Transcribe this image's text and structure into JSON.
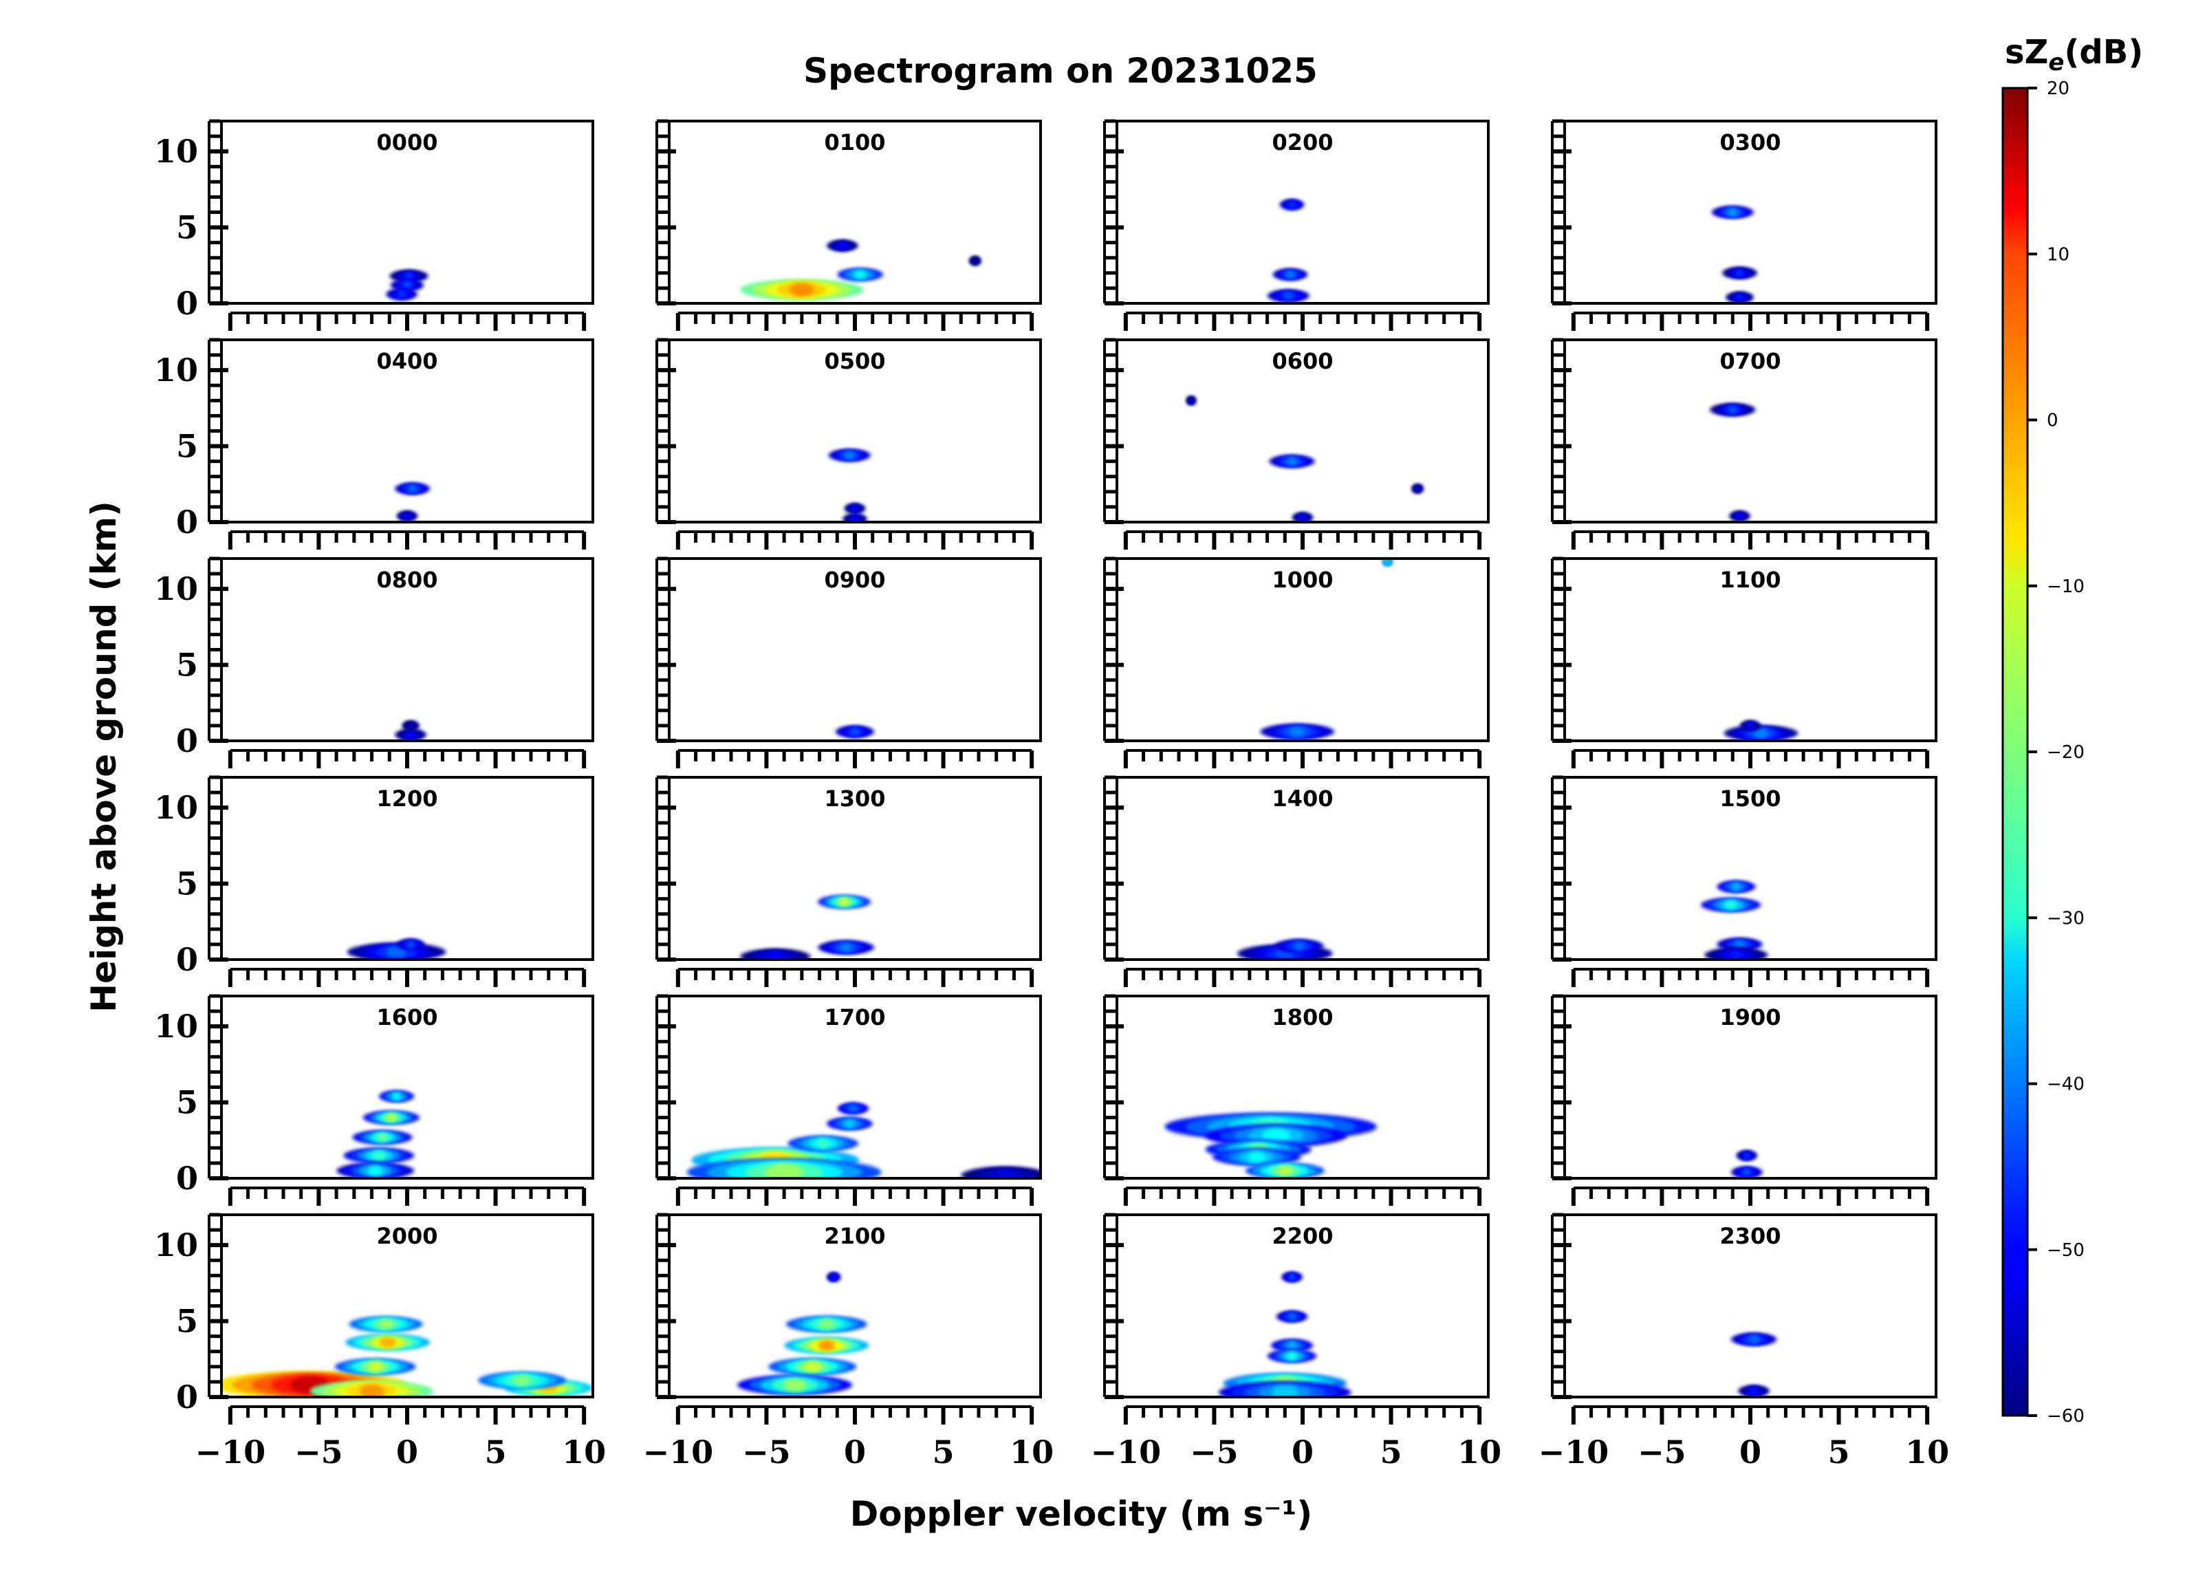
{
  "chart_data": {
    "type": "heatmap",
    "title": "Spectrogram on 20231025",
    "xlabel": "Doppler velocity (m s⁻¹)",
    "ylabel": "Height above ground (km)",
    "xlim": [
      -10.5,
      10.5
    ],
    "ylim": [
      0,
      12
    ],
    "xticks": [
      -10,
      -5,
      0,
      5,
      10
    ],
    "xtick_labels": [
      "−10",
      "−5",
      "0",
      "5",
      "10"
    ],
    "yticks": [
      0,
      5,
      10
    ],
    "ytick_labels": [
      "0",
      "5",
      "10"
    ],
    "grid": false,
    "colorbar": {
      "title": "sZe(dB)",
      "range": [
        -60,
        20
      ],
      "ticks": [
        20,
        10,
        0,
        -10,
        -20,
        -30,
        -40,
        -50,
        -60
      ],
      "tick_labels": [
        "20",
        "10",
        "0",
        "−10",
        "−20",
        "−30",
        "−40",
        "−50",
        "−60"
      ],
      "colormap": "jet"
    },
    "panels": [
      {
        "label": "0000",
        "echoes": [
          [
            0.1,
            1.8,
            2.2,
            -60,
            -46
          ],
          [
            0.0,
            1.2,
            1.9,
            -55,
            -44
          ],
          [
            -0.3,
            0.6,
            1.8,
            -55,
            -46
          ]
        ]
      },
      {
        "label": "0100",
        "echoes": [
          [
            -3,
            0.9,
            7,
            -22,
            -1
          ],
          [
            0.3,
            1.9,
            2.6,
            -48,
            -30
          ],
          [
            -0.7,
            3.8,
            1.8,
            -60,
            -50
          ],
          [
            6.8,
            2.8,
            0.7,
            -60,
            -58
          ]
        ]
      },
      {
        "label": "0200",
        "echoes": [
          [
            -0.6,
            6.5,
            1.4,
            -55,
            -46
          ],
          [
            -0.7,
            1.9,
            2.0,
            -55,
            -40
          ],
          [
            -0.8,
            0.5,
            2.4,
            -55,
            -44
          ]
        ]
      },
      {
        "label": "0300",
        "echoes": [
          [
            -1,
            6.0,
            2.4,
            -55,
            -38
          ],
          [
            -0.6,
            2.0,
            2.0,
            -60,
            -46
          ],
          [
            -0.6,
            0.4,
            1.6,
            -60,
            -48
          ]
        ]
      },
      {
        "label": "0400",
        "echoes": [
          [
            0.3,
            2.2,
            2.0,
            -55,
            -42
          ],
          [
            0,
            0.4,
            1.2,
            -60,
            -50
          ]
        ]
      },
      {
        "label": "0500",
        "echoes": [
          [
            -0.3,
            4.4,
            2.4,
            -55,
            -40
          ],
          [
            0,
            0.9,
            1.2,
            -60,
            -50
          ],
          [
            0,
            0.2,
            1.4,
            -60,
            -50
          ]
        ]
      },
      {
        "label": "0600",
        "echoes": [
          [
            -0.6,
            4.0,
            2.6,
            -55,
            -40
          ],
          [
            -6.3,
            8.0,
            0.6,
            -60,
            -55
          ],
          [
            6.5,
            2.2,
            0.7,
            -60,
            -55
          ],
          [
            0,
            0.3,
            1.2,
            -60,
            -50
          ]
        ]
      },
      {
        "label": "0700",
        "echoes": [
          [
            -1,
            7.4,
            2.6,
            -60,
            -44
          ],
          [
            -0.6,
            0.4,
            1.2,
            -60,
            -50
          ]
        ]
      },
      {
        "label": "0800",
        "echoes": [
          [
            0.2,
            0.4,
            1.8,
            -60,
            -50
          ],
          [
            0.2,
            1.0,
            1.0,
            -60,
            -56
          ]
        ]
      },
      {
        "label": "0900",
        "echoes": [
          [
            0,
            0.6,
            2.2,
            -55,
            -44
          ]
        ]
      },
      {
        "label": "1000",
        "echoes": [
          [
            -0.3,
            0.6,
            4.2,
            -55,
            -40
          ],
          [
            4.8,
            11.8,
            0.6,
            -40,
            -34
          ]
        ]
      },
      {
        "label": "1100",
        "echoes": [
          [
            0.6,
            0.5,
            4.2,
            -58,
            -40
          ],
          [
            0,
            1.0,
            1.2,
            -60,
            -50
          ]
        ]
      },
      {
        "label": "1200",
        "echoes": [
          [
            -0.6,
            0.5,
            5.6,
            -58,
            -42
          ],
          [
            0.2,
            1.0,
            1.6,
            -55,
            -44
          ]
        ]
      },
      {
        "label": "1300",
        "echoes": [
          [
            -0.6,
            3.8,
            3.0,
            -48,
            -14
          ],
          [
            -0.5,
            0.8,
            3.2,
            -55,
            -40
          ],
          [
            -4.5,
            0.2,
            4.0,
            -60,
            -50
          ]
        ]
      },
      {
        "label": "1400",
        "echoes": [
          [
            -1,
            0.4,
            5.4,
            -58,
            -44
          ],
          [
            -0.2,
            0.9,
            2.8,
            -55,
            -42
          ]
        ]
      },
      {
        "label": "1500",
        "echoes": [
          [
            -0.8,
            4.8,
            2.2,
            -52,
            -36
          ],
          [
            -1.1,
            3.6,
            3.4,
            -52,
            -28
          ],
          [
            -0.6,
            1.0,
            2.6,
            -55,
            -40
          ],
          [
            -0.8,
            0.3,
            3.6,
            -60,
            -48
          ]
        ]
      },
      {
        "label": "1600",
        "echoes": [
          [
            -0.6,
            5.4,
            2.0,
            -50,
            -30
          ],
          [
            -0.9,
            4.0,
            3.2,
            -50,
            -16
          ],
          [
            -1.4,
            2.7,
            3.4,
            -52,
            -22
          ],
          [
            -1.6,
            1.5,
            4.0,
            -52,
            -26
          ],
          [
            -1.8,
            0.5,
            4.4,
            -55,
            -30
          ]
        ]
      },
      {
        "label": "1700",
        "echoes": [
          [
            -4.5,
            1.2,
            9.5,
            -36,
            -8
          ],
          [
            -4,
            0.4,
            11,
            -44,
            -18
          ],
          [
            -0.3,
            3.6,
            2.6,
            -50,
            -34
          ],
          [
            -0.1,
            4.6,
            1.8,
            -52,
            -42
          ],
          [
            8.5,
            0.2,
            5.0,
            -60,
            -52
          ],
          [
            -1.8,
            2.3,
            4.0,
            -46,
            -26
          ]
        ]
      },
      {
        "label": "1800",
        "echoes": [
          [
            -1.8,
            3.4,
            12,
            -48,
            -26
          ],
          [
            -1.5,
            2.8,
            8,
            -50,
            -30
          ],
          [
            -2.5,
            1.9,
            6,
            -48,
            -22
          ],
          [
            -2.6,
            1.4,
            5,
            -48,
            -30
          ],
          [
            -1,
            0.5,
            4.5,
            -44,
            -16
          ]
        ]
      },
      {
        "label": "1900",
        "echoes": [
          [
            -0.2,
            1.5,
            1.2,
            -58,
            -46
          ],
          [
            -0.2,
            0.4,
            1.8,
            -55,
            -44
          ]
        ]
      },
      {
        "label": "2000",
        "echoes": [
          [
            -5.5,
            0.8,
            11,
            -8,
            14
          ],
          [
            -2,
            0.4,
            7,
            -22,
            -2
          ],
          [
            8,
            0.6,
            5,
            -34,
            -6
          ],
          [
            6.5,
            1.1,
            5,
            -42,
            -20
          ],
          [
            -1.2,
            4.8,
            4.2,
            -42,
            -18
          ],
          [
            -1.1,
            3.6,
            4.8,
            -36,
            -4
          ],
          [
            -1.8,
            2.0,
            4.6,
            -44,
            -14
          ]
        ]
      },
      {
        "label": "2100",
        "echoes": [
          [
            -1.6,
            4.8,
            4.6,
            -44,
            -20
          ],
          [
            -1.6,
            3.4,
            4.8,
            -36,
            -2
          ],
          [
            -2.4,
            2.0,
            5.0,
            -44,
            -14
          ],
          [
            -3.4,
            0.8,
            6.5,
            -50,
            -18
          ],
          [
            -1.2,
            7.9,
            0.8,
            -55,
            -50
          ]
        ]
      },
      {
        "label": "2200",
        "echoes": [
          [
            -0.6,
            7.9,
            1.2,
            -55,
            -44
          ],
          [
            -0.6,
            5.3,
            1.8,
            -55,
            -42
          ],
          [
            -0.6,
            3.4,
            2.4,
            -52,
            -36
          ],
          [
            -0.6,
            2.7,
            2.8,
            -52,
            -28
          ],
          [
            -1,
            0.9,
            7.0,
            -40,
            -18
          ],
          [
            -1,
            0.3,
            7.5,
            -52,
            -34
          ]
        ]
      },
      {
        "label": "2300",
        "echoes": [
          [
            0.2,
            3.8,
            2.6,
            -55,
            -42
          ],
          [
            0.2,
            0.4,
            1.8,
            -60,
            -48
          ]
        ]
      }
    ]
  }
}
